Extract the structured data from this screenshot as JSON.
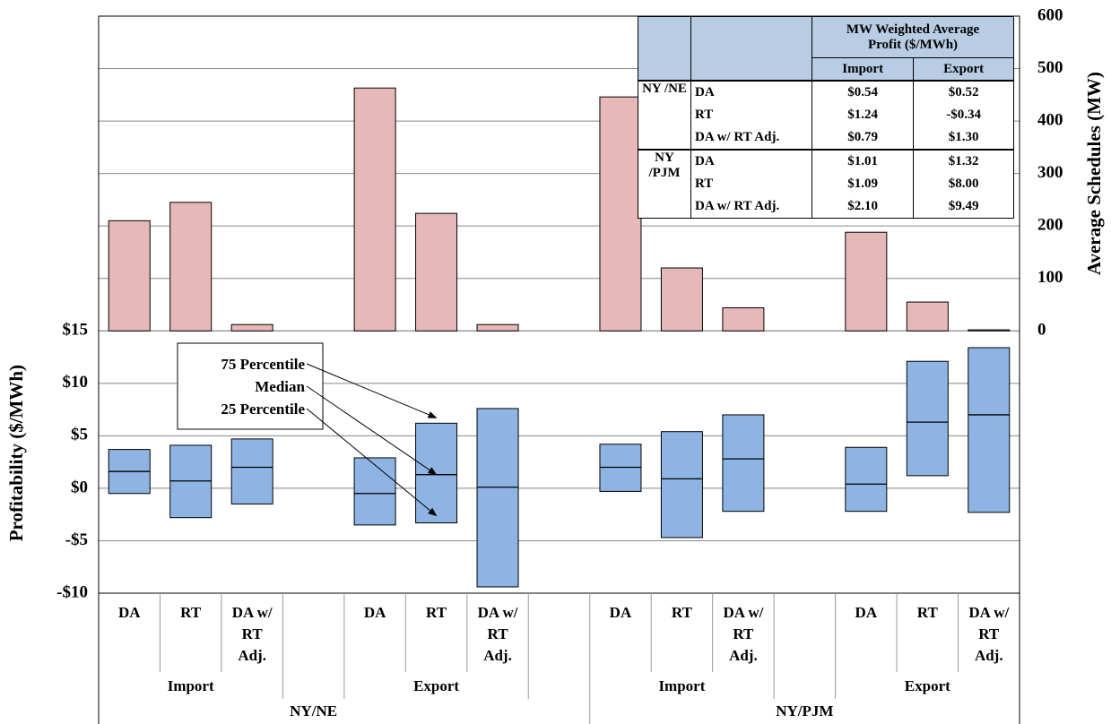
{
  "chart_data": [
    {
      "type": "bar",
      "categories": [
        "DA",
        "RT",
        "DA w/ RT Adj.",
        null,
        "DA",
        "RT",
        "DA w/ RT Adj.",
        null,
        "DA",
        "RT",
        "DA w/ RT Adj.",
        null,
        "DA",
        "RT",
        "DA w/ RT Adj."
      ],
      "groups": [
        "Import",
        "Export",
        "Import",
        "Export"
      ],
      "supergroups": [
        "NY/NE",
        "NY/PJM"
      ],
      "values": [
        210,
        245,
        12,
        null,
        463,
        224,
        12,
        null,
        446,
        120,
        44,
        null,
        188,
        55,
        2
      ],
      "color": "#e6b8b7",
      "axis": "y2",
      "y2_label": "Average Schedules (MW)",
      "y2lim": [
        -500,
        600
      ],
      "y2ticks": [
        0,
        100,
        200,
        300,
        400,
        500,
        600
      ],
      "grid": true
    },
    {
      "type": "box",
      "q1": [
        -0.5,
        -2.8,
        -1.5,
        null,
        -3.5,
        -3.3,
        -9.4,
        null,
        -0.3,
        -4.7,
        -2.2,
        null,
        -2.2,
        1.2,
        -2.3
      ],
      "median": [
        1.6,
        0.7,
        2.0,
        null,
        -0.5,
        1.3,
        0.1,
        null,
        2.0,
        0.9,
        2.8,
        null,
        0.4,
        6.3,
        7.0
      ],
      "q3": [
        3.7,
        4.1,
        4.7,
        null,
        2.9,
        6.2,
        7.6,
        null,
        4.2,
        5.4,
        7.0,
        null,
        3.9,
        12.1,
        13.4
      ],
      "color": "#8db4e2",
      "y_label": "Profitability ($/MWh)",
      "ylim": [
        -10,
        45
      ],
      "yticks": [
        {
          "value": -10,
          "label": "-$10"
        },
        {
          "value": -5,
          "label": "-$5"
        },
        {
          "value": 0,
          "label": "$0"
        },
        {
          "value": 5,
          "label": "$5"
        },
        {
          "value": 10,
          "label": "$10"
        },
        {
          "value": 15,
          "label": "$15"
        }
      ],
      "grid": true,
      "annotations": [
        "75 Percentile",
        "Median",
        "25 Percentile"
      ]
    }
  ],
  "table": {
    "header": "MW Weighted Average Profit ($/MWh)",
    "columns": [
      "Import",
      "Export"
    ],
    "groups": [
      {
        "name": "NY /NE",
        "rows": [
          [
            "DA",
            "$0.54",
            "$0.52"
          ],
          [
            "RT",
            "$1.24",
            "-$0.34"
          ],
          [
            "DA w/ RT Adj.",
            "$0.79",
            "$1.30"
          ]
        ]
      },
      {
        "name": "NY /PJM",
        "rows": [
          [
            "DA",
            "$1.01",
            "$1.32"
          ],
          [
            "RT",
            "$1.09",
            "$8.00"
          ],
          [
            "DA w/ RT Adj.",
            "$2.10",
            "$9.49"
          ]
        ]
      }
    ]
  }
}
